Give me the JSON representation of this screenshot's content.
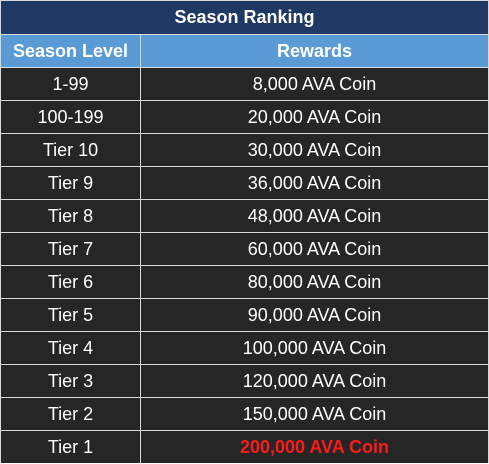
{
  "title": "Season Ranking",
  "headers": {
    "level": "Season Level",
    "rewards": "Rewards"
  },
  "rows": [
    {
      "level": "1-99",
      "reward": "8,000 AVA Coin"
    },
    {
      "level": "100-199",
      "reward": "20,000 AVA Coin"
    },
    {
      "level": "Tier 10",
      "reward": "30,000 AVA Coin"
    },
    {
      "level": "Tier 9",
      "reward": "36,000 AVA Coin"
    },
    {
      "level": "Tier 8",
      "reward": "48,000 AVA Coin"
    },
    {
      "level": "Tier 7",
      "reward": "60,000 AVA Coin"
    },
    {
      "level": "Tier 6",
      "reward": "80,000 AVA Coin"
    },
    {
      "level": "Tier 5",
      "reward": "90,000 AVA Coin"
    },
    {
      "level": "Tier 4",
      "reward": "100,000 AVA Coin"
    },
    {
      "level": "Tier 3",
      "reward": "120,000 AVA Coin"
    },
    {
      "level": "Tier 2",
      "reward": "150,000 AVA Coin"
    },
    {
      "level": "Tier 1",
      "reward": "200,000 AVA Coin"
    }
  ],
  "colors": {
    "title_bg": "#1f3864",
    "header_bg": "#5b9bd5",
    "cell_bg": "#262626",
    "highlight_text": "#ff1a1a"
  }
}
